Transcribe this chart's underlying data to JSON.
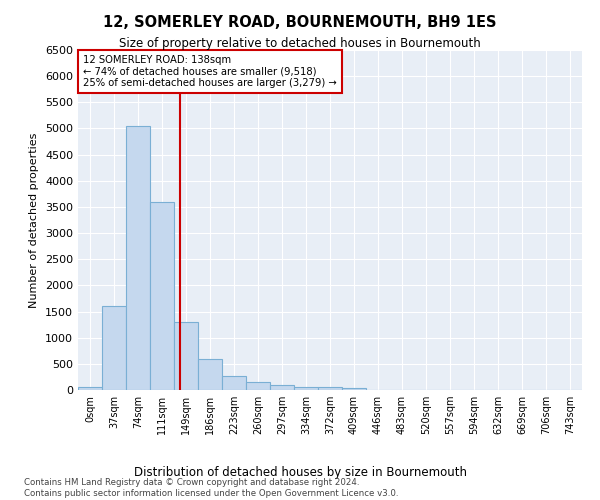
{
  "title": "12, SOMERLEY ROAD, BOURNEMOUTH, BH9 1ES",
  "subtitle": "Size of property relative to detached houses in Bournemouth",
  "xlabel": "Distribution of detached houses by size in Bournemouth",
  "ylabel": "Number of detached properties",
  "bar_color": "#c5d8ee",
  "bar_edge_color": "#7aafd4",
  "background_color": "#e8eef6",
  "grid_color": "#ffffff",
  "annotation_box_color": "#cc0000",
  "property_line_color": "#cc0000",
  "annotation_text": "12 SOMERLEY ROAD: 138sqm\n← 74% of detached houses are smaller (9,518)\n25% of semi-detached houses are larger (3,279) →",
  "footer_text": "Contains HM Land Registry data © Crown copyright and database right 2024.\nContains public sector information licensed under the Open Government Licence v3.0.",
  "categories": [
    "0sqm",
    "37sqm",
    "74sqm",
    "111sqm",
    "149sqm",
    "186sqm",
    "223sqm",
    "260sqm",
    "297sqm",
    "334sqm",
    "372sqm",
    "409sqm",
    "446sqm",
    "483sqm",
    "520sqm",
    "557sqm",
    "594sqm",
    "632sqm",
    "669sqm",
    "706sqm",
    "743sqm"
  ],
  "values": [
    50,
    1600,
    5050,
    3600,
    1300,
    600,
    275,
    150,
    100,
    50,
    50,
    30,
    0,
    0,
    0,
    0,
    0,
    0,
    0,
    0,
    0
  ],
  "property_bin_index": 3.75,
  "ylim": [
    0,
    6500
  ],
  "yticks": [
    0,
    500,
    1000,
    1500,
    2000,
    2500,
    3000,
    3500,
    4000,
    4500,
    5000,
    5500,
    6000,
    6500
  ]
}
